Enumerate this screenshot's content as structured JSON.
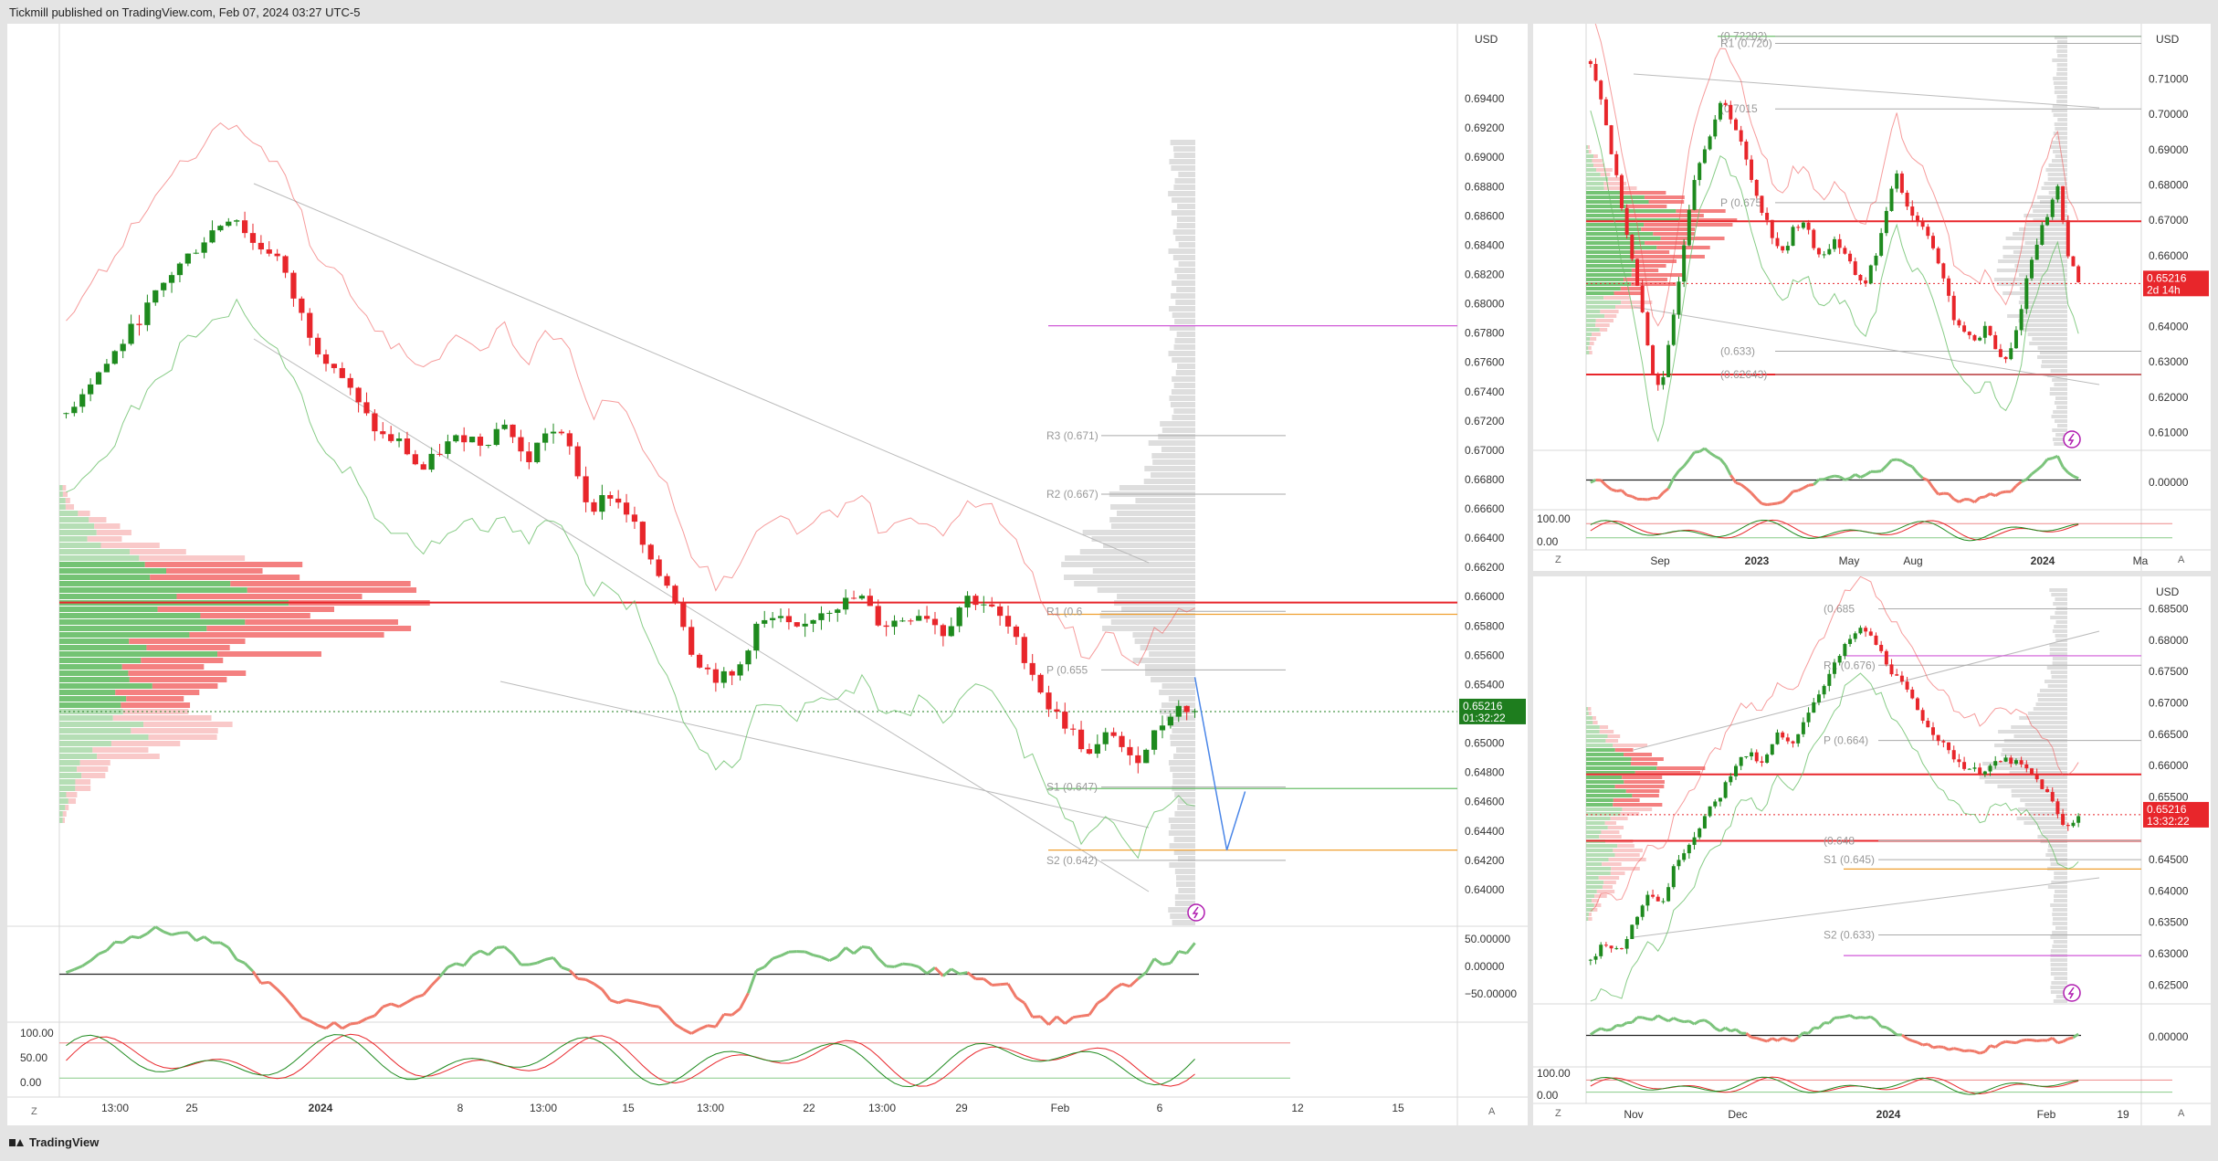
{
  "header": {
    "publisher_line": "Tickmill published on TradingView.com, Feb 07, 2024 03:27 UTC-5"
  },
  "footer": {
    "brand": "TradingView"
  },
  "colors": {
    "up": "#1e8a1e",
    "down": "#e8262b",
    "green_line": "#6abf69",
    "red_line": "#f05a5a",
    "magenta": "#d05ad8",
    "orange": "#f0a030",
    "blue": "#4a86e8",
    "price_label_main": "#1e7d1e",
    "price_label_side": "#e8262b",
    "profile_gray": "#d6d6d6"
  },
  "main": {
    "currency": "USD",
    "price_axis": [
      "0.69400",
      "0.69200",
      "0.69000",
      "0.68800",
      "0.68600",
      "0.68400",
      "0.68200",
      "0.68000",
      "0.67800",
      "0.67600",
      "0.67400",
      "0.67200",
      "0.67000",
      "0.66800",
      "0.66600",
      "0.66400",
      "0.66200",
      "0.66000",
      "0.65800",
      "0.65600",
      "0.65400",
      "0.65200",
      "0.65000",
      "0.64800",
      "0.64600",
      "0.64400",
      "0.64200",
      "0.64000"
    ],
    "price_label": "0.65216",
    "countdown": "01:32:22",
    "pivot_labels": [
      "R3 (0.671)",
      "R2 (0.667)",
      "R1 (0.6",
      "P (0.655",
      "S1 (0.647)",
      "S2 (0.642)"
    ],
    "osc1_axis": [
      "50.00000",
      "0.00000",
      "−50.00000"
    ],
    "osc2_axis": [
      "100.00",
      "50.00",
      "0.00"
    ],
    "time_axis": [
      "13:00",
      "25",
      "2024",
      "8",
      "13:00",
      "15",
      "13:00",
      "22",
      "13:00",
      "29",
      "Feb",
      "6",
      "12",
      "15"
    ],
    "z_button": "Z",
    "a_button": "A",
    "lightning_icon": "lightning-icon"
  },
  "top_right": {
    "currency": "USD",
    "price_axis": [
      "0.71000",
      "0.70000",
      "0.69000",
      "0.68000",
      "0.67000",
      "0.66000",
      "0.65000",
      "0.64000",
      "0.63000",
      "0.62000",
      "0.61000"
    ],
    "price_label": "0.65216",
    "countdown": "2d 14h",
    "pivot_labels": [
      "(0.72202)",
      "R1 (0.720)",
      "(0.7015",
      "P (0.675",
      "(0.633)",
      "(0.62643)"
    ],
    "osc1_axis": [
      "0.00000"
    ],
    "osc2_axis": [
      "100.00",
      "0.00"
    ],
    "time_axis": [
      "Sep",
      "2023",
      "May",
      "Aug",
      "2024",
      "Ma"
    ],
    "z_button": "Z",
    "a_button": "A"
  },
  "bottom_right": {
    "currency": "USD",
    "price_axis": [
      "0.68500",
      "0.68000",
      "0.67500",
      "0.67000",
      "0.66500",
      "0.66000",
      "0.65500",
      "0.64500",
      "0.64000",
      "0.63500",
      "0.63000",
      "0.62500"
    ],
    "price_label": "0.65216",
    "countdown": "13:32:22",
    "pivot_labels": [
      "(0.685",
      "R1 (0.676)",
      "P (0.664)",
      "(0.648",
      "S1 (0.645)",
      "S2 (0.633)"
    ],
    "osc1_axis": [
      "0.00000"
    ],
    "osc2_axis": [
      "100.00",
      "0.00"
    ],
    "time_axis": [
      "Nov",
      "Dec",
      "2024",
      "Feb",
      "19"
    ],
    "z_button": "Z",
    "a_button": "A"
  },
  "chart_data": [
    {
      "type": "candlestick",
      "title": "",
      "ylim": [
        0.6375,
        0.696
      ],
      "yticks": [
        0.694,
        0.692,
        0.69,
        0.688,
        0.686,
        0.684,
        0.682,
        0.68,
        0.678,
        0.676,
        0.674,
        0.672,
        0.67,
        0.668,
        0.666,
        0.664,
        0.662,
        0.66,
        0.658,
        0.656,
        0.654,
        0.652,
        0.65,
        0.648,
        0.646,
        0.644,
        0.642,
        0.64
      ],
      "key_points": [
        0.6725,
        0.6745,
        0.676,
        0.678,
        0.68,
        0.682,
        0.6835,
        0.685,
        0.6862,
        0.684,
        0.6835,
        0.68,
        0.677,
        0.6755,
        0.673,
        0.671,
        0.6705,
        0.6685,
        0.6702,
        0.671,
        0.6705,
        0.672,
        0.669,
        0.6715,
        0.6705,
        0.666,
        0.667,
        0.6655,
        0.662,
        0.6605,
        0.656,
        0.6545,
        0.6545,
        0.658,
        0.6585,
        0.6575,
        0.659,
        0.6595,
        0.66,
        0.658,
        0.6585,
        0.659,
        0.6575,
        0.66,
        0.6595,
        0.658,
        0.6555,
        0.6525,
        0.651,
        0.649,
        0.651,
        0.6485,
        0.6505,
        0.6525,
        0.6522
      ],
      "last_price": 0.65216,
      "horizontal_lines": [
        {
          "price": 0.6596,
          "color": "red"
        },
        {
          "price": 0.6785,
          "color": "magenta"
        },
        {
          "price": 0.6588,
          "color": "orange"
        },
        {
          "price": 0.6469,
          "color": "green"
        },
        {
          "price": 0.6427,
          "color": "orange"
        }
      ],
      "pivots": [
        {
          "label": "R3 (0.671)",
          "price": 0.671
        },
        {
          "label": "R2 (0.667)",
          "price": 0.667
        },
        {
          "label": "R1 (0.6",
          "price": 0.659
        },
        {
          "label": "P (0.655",
          "price": 0.655
        },
        {
          "label": "S1 (0.647)",
          "price": 0.647
        },
        {
          "label": "S2 (0.642)",
          "price": 0.642
        }
      ],
      "projection": [
        0.6545,
        0.6427,
        0.6467
      ],
      "osc_ylim": [
        -60,
        60
      ],
      "stoch_ylim": [
        0,
        100
      ]
    },
    {
      "type": "candlestick",
      "title": "",
      "ylim": [
        0.605,
        0.7235
      ],
      "yticks": [
        0.71,
        0.7,
        0.69,
        0.68,
        0.67,
        0.66,
        0.65,
        0.64,
        0.63,
        0.62,
        0.61
      ],
      "key_points": [
        0.715,
        0.705,
        0.69,
        0.675,
        0.66,
        0.645,
        0.628,
        0.622,
        0.64,
        0.66,
        0.68,
        0.69,
        0.695,
        0.705,
        0.698,
        0.69,
        0.68,
        0.672,
        0.665,
        0.66,
        0.668,
        0.67,
        0.662,
        0.66,
        0.665,
        0.66,
        0.655,
        0.652,
        0.66,
        0.67,
        0.685,
        0.675,
        0.67,
        0.668,
        0.66,
        0.65,
        0.64,
        0.638,
        0.636,
        0.64,
        0.632,
        0.63,
        0.64,
        0.655,
        0.665,
        0.672,
        0.68,
        0.66,
        0.652
      ],
      "last_price": 0.65216,
      "horizontal_lines": [
        {
          "price": 0.72202,
          "color": "green"
        },
        {
          "price": 0.66975,
          "color": "red"
        },
        {
          "price": 0.62643,
          "color": "red"
        }
      ],
      "pivots": [
        {
          "label": "(0.72202)",
          "price": 0.72202
        },
        {
          "label": "R1 (0.720)",
          "price": 0.72
        },
        {
          "label": "(0.7015",
          "price": 0.7015
        },
        {
          "label": "P (0.675",
          "price": 0.675
        },
        {
          "label": "(0.633)",
          "price": 0.633
        },
        {
          "label": "(0.62643)",
          "price": 0.62643
        }
      ]
    },
    {
      "type": "candlestick",
      "title": "",
      "ylim": [
        0.622,
        0.689
      ],
      "yticks": [
        0.685,
        0.68,
        0.675,
        0.67,
        0.665,
        0.66,
        0.655,
        0.645,
        0.64,
        0.635,
        0.63,
        0.625
      ],
      "key_points": [
        0.629,
        0.632,
        0.63,
        0.635,
        0.64,
        0.638,
        0.645,
        0.648,
        0.652,
        0.655,
        0.66,
        0.662,
        0.66,
        0.665,
        0.663,
        0.668,
        0.672,
        0.676,
        0.68,
        0.682,
        0.679,
        0.675,
        0.672,
        0.668,
        0.665,
        0.662,
        0.66,
        0.659,
        0.66,
        0.661,
        0.66,
        0.658,
        0.655,
        0.65,
        0.652
      ],
      "last_price": 0.65216,
      "horizontal_lines": [
        {
          "price": 0.6586,
          "color": "red"
        },
        {
          "price": 0.648,
          "color": "red"
        },
        {
          "price": 0.6435,
          "color": "orange"
        },
        {
          "price": 0.6297,
          "color": "magenta"
        },
        {
          "price": 0.6775,
          "color": "magenta"
        }
      ],
      "pivots": [
        {
          "label": "(0.685",
          "price": 0.685
        },
        {
          "label": "R1 (0.676)",
          "price": 0.676
        },
        {
          "label": "P (0.664)",
          "price": 0.664
        },
        {
          "label": "(0.648",
          "price": 0.648
        },
        {
          "label": "S1 (0.645)",
          "price": 0.645
        },
        {
          "label": "S2 (0.633)",
          "price": 0.633
        }
      ]
    }
  ]
}
